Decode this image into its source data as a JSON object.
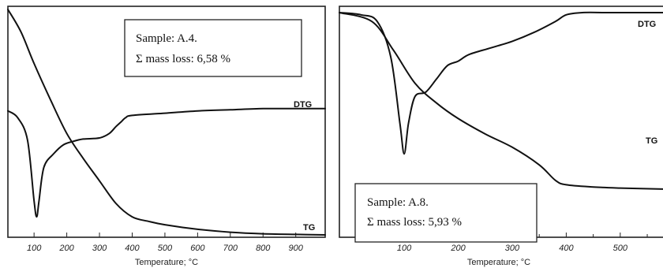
{
  "chart_data": [
    {
      "type": "line",
      "annotation": {
        "sample_line": "Sample: A.4.",
        "mass_loss_line": "Σ mass loss: 6,58 %"
      },
      "xlabel": "Temperature; °C",
      "ylabel": "",
      "xlim": [
        20,
        990
      ],
      "ticks": [
        100,
        200,
        300,
        400,
        500,
        600,
        700,
        800,
        900
      ],
      "tick_labels": [
        "100",
        "200",
        "300",
        "400",
        "500",
        "600",
        "700",
        "800",
        "900"
      ],
      "y_ticks_printed": false,
      "series": [
        {
          "name": "TG",
          "x": [
            20,
            60,
            100,
            150,
            200,
            250,
            300,
            350,
            400,
            450,
            500,
            600,
            700,
            800,
            900,
            990
          ],
          "y": [
            1.0,
            0.9,
            0.76,
            0.6,
            0.45,
            0.34,
            0.24,
            0.14,
            0.08,
            0.06,
            0.045,
            0.025,
            0.012,
            0.005,
            0.002,
            0.0
          ]
        },
        {
          "name": "DTG",
          "x": [
            20,
            50,
            80,
            100,
            108,
            115,
            130,
            160,
            190,
            220,
            250,
            300,
            330,
            350,
            365,
            380,
            400,
            500,
            600,
            700,
            800,
            900,
            990
          ],
          "y": [
            0.55,
            0.52,
            0.42,
            0.15,
            0.08,
            0.15,
            0.3,
            0.36,
            0.4,
            0.415,
            0.425,
            0.43,
            0.45,
            0.48,
            0.5,
            0.52,
            0.53,
            0.54,
            0.55,
            0.555,
            0.56,
            0.56,
            0.56
          ]
        }
      ]
    },
    {
      "type": "line",
      "annotation": {
        "sample_line": "Sample: A.8.",
        "mass_loss_line": "Σ mass loss: 5,93 %"
      },
      "xlabel": "Temperature; °C",
      "ylabel": "",
      "xlim": [
        -20,
        585
      ],
      "ticks": [
        100,
        200,
        300,
        400,
        500
      ],
      "tick_labels": [
        "100",
        "200",
        "300",
        "400",
        "500"
      ],
      "minor_ticks": [
        50,
        150,
        250,
        350,
        450,
        550
      ],
      "y_ticks_printed": false,
      "series": [
        {
          "name": "DTG",
          "x": [
            -20,
            20,
            50,
            75,
            92,
            100,
            108,
            120,
            140,
            160,
            180,
            200,
            220,
            260,
            300,
            340,
            380,
            400,
            430,
            480,
            585
          ],
          "y": [
            1.0,
            0.99,
            0.96,
            0.8,
            0.5,
            0.36,
            0.5,
            0.62,
            0.64,
            0.7,
            0.76,
            0.78,
            0.81,
            0.84,
            0.87,
            0.91,
            0.96,
            0.99,
            1.0,
            1.0,
            1.0
          ]
        },
        {
          "name": "TG",
          "x": [
            -20,
            40,
            80,
            120,
            160,
            200,
            250,
            300,
            350,
            380,
            400,
            450,
            500,
            585
          ],
          "y": [
            1.0,
            0.96,
            0.83,
            0.68,
            0.59,
            0.52,
            0.45,
            0.39,
            0.31,
            0.24,
            0.22,
            0.21,
            0.205,
            0.2
          ]
        }
      ]
    }
  ]
}
